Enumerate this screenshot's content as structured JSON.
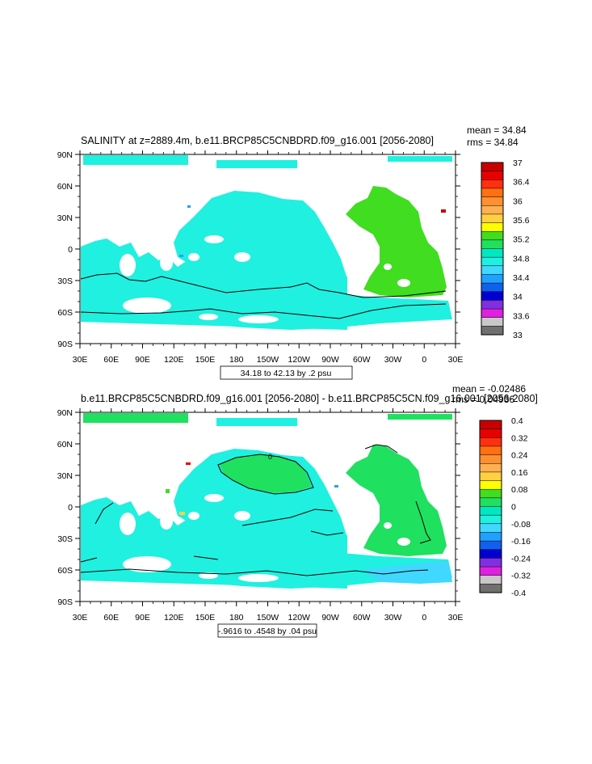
{
  "panels": [
    {
      "title": "SALINITY at z=2889.4m, b.e11.BRCP85C5CNBDRD.f09_g16.001 [2056-2080]",
      "stats": [
        "mean = 34.84",
        "rms = 34.84"
      ],
      "contour_info": "34.18 to 42.13 by .2 psu",
      "chart_data": {
        "type": "heatmap",
        "variable": "SALINITY",
        "units": "psu",
        "depth": "z=2889.4m",
        "period": "2056-2080",
        "mean": 34.84,
        "rms": 34.84,
        "contour_range": [
          34.18,
          42.13
        ],
        "contour_interval": 0.2,
        "colorbar": {
          "levels": [
            "37",
            "36.4",
            "36",
            "35.6",
            "35.2",
            "34.8",
            "34.4",
            "34",
            "33.6",
            "33"
          ],
          "colors": [
            "#c80000",
            "#e80000",
            "#ff3010",
            "#ff7010",
            "#ff9030",
            "#ffb050",
            "#ffd040",
            "#ffff00",
            "#40dd20",
            "#20e060",
            "#00e8c0",
            "#20f0e0",
            "#40d8ff",
            "#20a0ff",
            "#1060f0",
            "#0000d0",
            "#8030e0",
            "#e020e0",
            "#c8c8c8",
            "#707070"
          ]
        },
        "map_fill": {
          "atlantic": "#40dd20",
          "pacific_indian_southern": "#20f0e0",
          "mediterranean": "#c80000"
        },
        "xticks": [
          "30E",
          "60E",
          "90E",
          "120E",
          "150E",
          "180",
          "150W",
          "120W",
          "90W",
          "60W",
          "30W",
          "0",
          "30E"
        ],
        "yticks": [
          "90N",
          "60N",
          "30N",
          "0",
          "30S",
          "60S",
          "90S"
        ]
      }
    },
    {
      "title": "b.e11.BRCP85C5CNBDRD.f09_g16.001 [2056-2080] - b.e11.BRCP85C5CN.f09_g16.001 [2056-2080]",
      "stats": [
        "mean = -0.02486",
        "rms = 0.04936"
      ],
      "contour_info": "-.9616 to .4548 by .04 psu",
      "chart_data": {
        "type": "heatmap",
        "variable": "SALINITY difference",
        "units": "psu",
        "mean": -0.02486,
        "rms": 0.04936,
        "contour_range": [
          -0.9616,
          0.4548
        ],
        "contour_interval": 0.04,
        "contour_label": "0",
        "colorbar": {
          "levels": [
            "0.4",
            "0.32",
            "0.24",
            "0.16",
            "0.08",
            "0",
            "-0.08",
            "-0.16",
            "-0.24",
            "-0.32",
            "-0.4"
          ],
          "colors": [
            "#c80000",
            "#e80000",
            "#ff3010",
            "#ff7010",
            "#ff9030",
            "#ffb050",
            "#ffd040",
            "#ffff00",
            "#40dd20",
            "#20e060",
            "#00e8c0",
            "#20f0e0",
            "#40d8ff",
            "#20a0ff",
            "#1060f0",
            "#0000d0",
            "#8030e0",
            "#e020e0",
            "#c8c8c8",
            "#707070"
          ]
        },
        "map_fill": {
          "atlantic_and_north_pacific": "#20e060",
          "elsewhere": "#20f0e0",
          "weddell_sea": "#40d8ff"
        },
        "xticks": [
          "30E",
          "60E",
          "90E",
          "120E",
          "150E",
          "180",
          "150W",
          "120W",
          "90W",
          "60W",
          "30W",
          "0",
          "30E"
        ],
        "yticks": [
          "90N",
          "60N",
          "30N",
          "0",
          "30S",
          "60S",
          "90S"
        ]
      }
    }
  ]
}
